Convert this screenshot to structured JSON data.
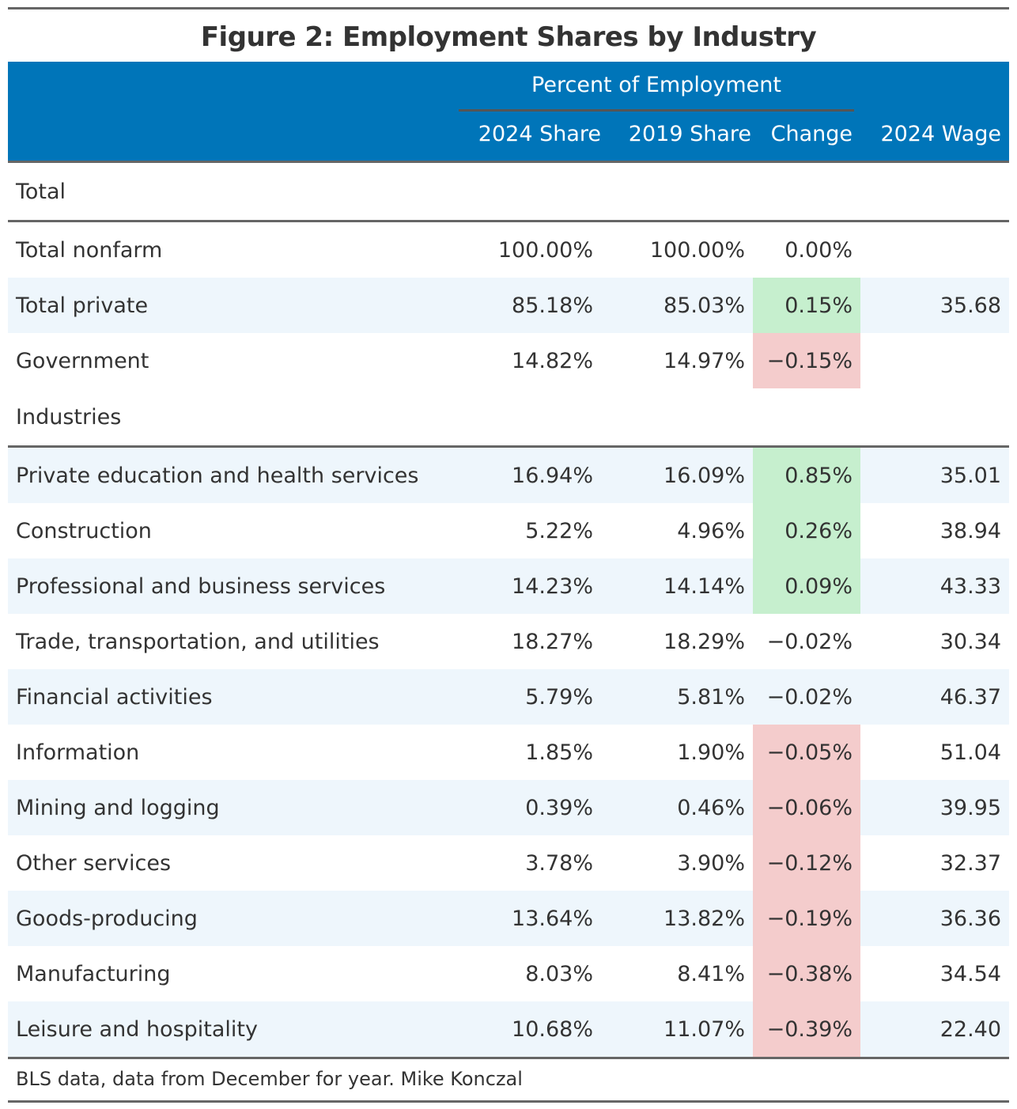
{
  "title": "Figure 2: Employment Shares by Industry",
  "header": {
    "spanner": "Percent of Employment",
    "columns": [
      "2024 Share",
      "2019 Share",
      "Change",
      "2024 Wage"
    ]
  },
  "colors": {
    "header_bg": "#0075B9",
    "positive": "#C6EFCE",
    "negative": "#F4CCCC",
    "stripe": "#EEF6FC"
  },
  "groups": [
    {
      "label": "Total",
      "rows": [
        {
          "name": "Total nonfarm",
          "share2024": "100.00%",
          "share2019": "100.00%",
          "change": "0.00%",
          "wage": "",
          "highlight": ""
        },
        {
          "name": "Total private",
          "share2024": "85.18%",
          "share2019": "85.03%",
          "change": "0.15%",
          "wage": "35.68",
          "highlight": "pos"
        },
        {
          "name": "Government",
          "share2024": "14.82%",
          "share2019": "14.97%",
          "change": "−0.15%",
          "wage": "",
          "highlight": "neg"
        }
      ]
    },
    {
      "label": "Industries",
      "rows": [
        {
          "name": "Private education and health services",
          "share2024": "16.94%",
          "share2019": "16.09%",
          "change": "0.85%",
          "wage": "35.01",
          "highlight": "pos"
        },
        {
          "name": "Construction",
          "share2024": "5.22%",
          "share2019": "4.96%",
          "change": "0.26%",
          "wage": "38.94",
          "highlight": "pos"
        },
        {
          "name": "Professional and business services",
          "share2024": "14.23%",
          "share2019": "14.14%",
          "change": "0.09%",
          "wage": "43.33",
          "highlight": "pos"
        },
        {
          "name": "Trade, transportation, and utilities",
          "share2024": "18.27%",
          "share2019": "18.29%",
          "change": "−0.02%",
          "wage": "30.34",
          "highlight": ""
        },
        {
          "name": "Financial activities",
          "share2024": "5.79%",
          "share2019": "5.81%",
          "change": "−0.02%",
          "wage": "46.37",
          "highlight": ""
        },
        {
          "name": "Information",
          "share2024": "1.85%",
          "share2019": "1.90%",
          "change": "−0.05%",
          "wage": "51.04",
          "highlight": "neg"
        },
        {
          "name": "Mining and logging",
          "share2024": "0.39%",
          "share2019": "0.46%",
          "change": "−0.06%",
          "wage": "39.95",
          "highlight": "neg"
        },
        {
          "name": "Other services",
          "share2024": "3.78%",
          "share2019": "3.90%",
          "change": "−0.12%",
          "wage": "32.37",
          "highlight": "neg"
        },
        {
          "name": "Goods-producing",
          "share2024": "13.64%",
          "share2019": "13.82%",
          "change": "−0.19%",
          "wage": "36.36",
          "highlight": "neg"
        },
        {
          "name": "Manufacturing",
          "share2024": "8.03%",
          "share2019": "8.41%",
          "change": "−0.38%",
          "wage": "34.54",
          "highlight": "neg"
        },
        {
          "name": "Leisure and hospitality",
          "share2024": "10.68%",
          "share2019": "11.07%",
          "change": "−0.39%",
          "wage": "22.40",
          "highlight": "neg"
        }
      ]
    }
  ],
  "footer": "BLS data, data from December for year. Mike Konczal"
}
